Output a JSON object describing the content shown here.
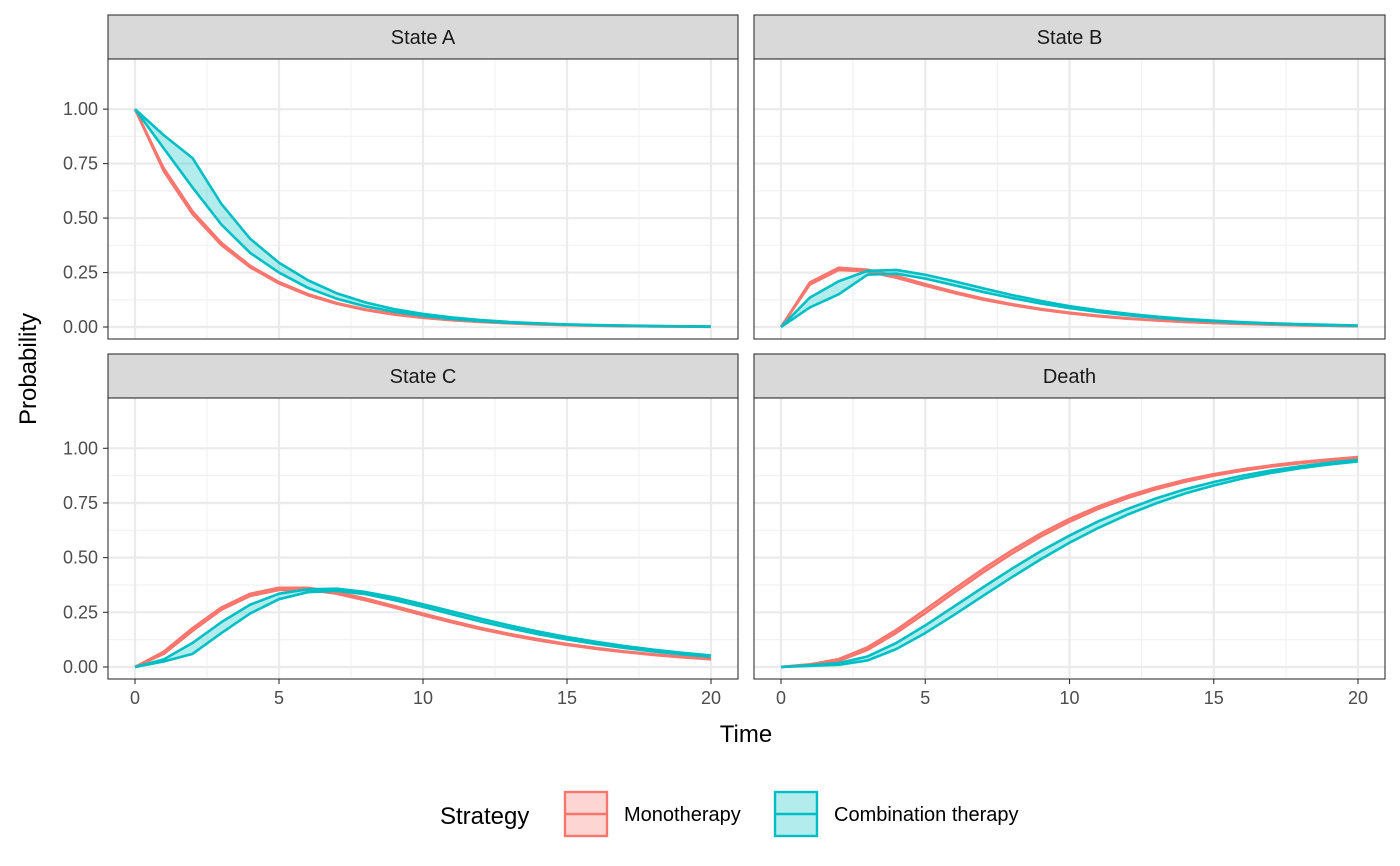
{
  "chart_data": {
    "type": "line",
    "layout": "facet-grid-2x2",
    "xlabel": "Time",
    "ylabel": "Probability",
    "xlim": [
      0,
      20
    ],
    "ylim": [
      0,
      1
    ],
    "x_ticks": [
      0,
      5,
      10,
      15,
      20
    ],
    "y_ticks": [
      0,
      0.25,
      0.5,
      0.75,
      1
    ],
    "y_tick_labels": [
      "0.00",
      "0.25",
      "0.50",
      "0.75",
      "1.00"
    ],
    "grid": true,
    "legend": {
      "title": "Strategy",
      "position": "bottom",
      "entries": [
        {
          "name": "Monotherapy",
          "color": "#F8766D",
          "fill": "#F8766D"
        },
        {
          "name": "Combination therapy",
          "color": "#00BFC4",
          "fill": "#00BFC4"
        }
      ]
    },
    "x": [
      0,
      1,
      2,
      3,
      4,
      5,
      6,
      7,
      8,
      9,
      10,
      11,
      12,
      13,
      14,
      15,
      16,
      17,
      18,
      19,
      20
    ],
    "panels": [
      {
        "title": "State A",
        "series": [
          {
            "name": "Monotherapy",
            "lower": [
              1.0,
              0.715,
              0.518,
              0.376,
              0.274,
              0.2,
              0.146,
              0.107,
              0.078,
              0.057,
              0.042,
              0.031,
              0.023,
              0.017,
              0.012,
              0.009,
              0.006,
              0.004,
              0.003,
              0.002,
              0.001
            ],
            "upper": [
              1.0,
              0.728,
              0.53,
              0.386,
              0.281,
              0.206,
              0.151,
              0.11,
              0.081,
              0.059,
              0.043,
              0.032,
              0.024,
              0.018,
              0.013,
              0.009,
              0.007,
              0.005,
              0.003,
              0.002,
              0.001
            ]
          },
          {
            "name": "Combination therapy",
            "lower": [
              1.0,
              0.82,
              0.64,
              0.47,
              0.34,
              0.25,
              0.18,
              0.13,
              0.095,
              0.07,
              0.051,
              0.037,
              0.027,
              0.02,
              0.015,
              0.011,
              0.008,
              0.006,
              0.004,
              0.003,
              0.002
            ],
            "upper": [
              1.0,
              0.88,
              0.775,
              0.565,
              0.405,
              0.295,
              0.215,
              0.155,
              0.113,
              0.082,
              0.06,
              0.044,
              0.032,
              0.023,
              0.017,
              0.012,
              0.009,
              0.007,
              0.005,
              0.003,
              0.002
            ]
          }
        ]
      },
      {
        "title": "State B",
        "series": [
          {
            "name": "Monotherapy",
            "lower": [
              0.0,
              0.195,
              0.262,
              0.255,
              0.226,
              0.19,
              0.156,
              0.126,
              0.101,
              0.08,
              0.063,
              0.049,
              0.038,
              0.03,
              0.023,
              0.018,
              0.014,
              0.011,
              0.008,
              0.006,
              0.004
            ],
            "upper": [
              0.0,
              0.205,
              0.272,
              0.263,
              0.234,
              0.197,
              0.162,
              0.131,
              0.105,
              0.083,
              0.066,
              0.052,
              0.04,
              0.031,
              0.024,
              0.019,
              0.015,
              0.011,
              0.008,
              0.006,
              0.004
            ]
          },
          {
            "name": "Combination therapy",
            "lower": [
              0.0,
              0.09,
              0.15,
              0.24,
              0.245,
              0.222,
              0.192,
              0.161,
              0.133,
              0.108,
              0.087,
              0.069,
              0.054,
              0.043,
              0.033,
              0.026,
              0.02,
              0.015,
              0.011,
              0.008,
              0.006
            ],
            "upper": [
              0.0,
              0.135,
              0.21,
              0.258,
              0.262,
              0.24,
              0.21,
              0.178,
              0.147,
              0.12,
              0.096,
              0.077,
              0.061,
              0.048,
              0.037,
              0.029,
              0.022,
              0.017,
              0.013,
              0.01,
              0.007
            ]
          }
        ]
      },
      {
        "title": "State C",
        "series": [
          {
            "name": "Monotherapy",
            "lower": [
              0.0,
              0.06,
              0.165,
              0.262,
              0.325,
              0.352,
              0.353,
              0.335,
              0.305,
              0.272,
              0.237,
              0.204,
              0.173,
              0.146,
              0.122,
              0.101,
              0.083,
              0.068,
              0.055,
              0.044,
              0.035
            ],
            "upper": [
              0.0,
              0.07,
              0.178,
              0.272,
              0.335,
              0.362,
              0.362,
              0.343,
              0.313,
              0.279,
              0.244,
              0.21,
              0.179,
              0.151,
              0.127,
              0.105,
              0.087,
              0.071,
              0.058,
              0.047,
              0.038
            ]
          },
          {
            "name": "Combination therapy",
            "lower": [
              0.0,
              0.025,
              0.06,
              0.155,
              0.245,
              0.31,
              0.342,
              0.348,
              0.333,
              0.306,
              0.275,
              0.241,
              0.208,
              0.178,
              0.15,
              0.126,
              0.105,
              0.087,
              0.071,
              0.058,
              0.047
            ],
            "upper": [
              0.0,
              0.035,
              0.11,
              0.205,
              0.285,
              0.335,
              0.355,
              0.358,
              0.343,
              0.318,
              0.287,
              0.254,
              0.221,
              0.19,
              0.162,
              0.137,
              0.115,
              0.096,
              0.079,
              0.065,
              0.053
            ]
          }
        ]
      },
      {
        "title": "Death",
        "series": [
          {
            "name": "Monotherapy",
            "lower": [
              0.0,
              0.008,
              0.028,
              0.078,
              0.156,
              0.246,
              0.34,
              0.432,
              0.518,
              0.596,
              0.664,
              0.723,
              0.772,
              0.813,
              0.847,
              0.875,
              0.898,
              0.917,
              0.932,
              0.945,
              0.955
            ],
            "upper": [
              0.0,
              0.012,
              0.036,
              0.09,
              0.17,
              0.262,
              0.356,
              0.448,
              0.533,
              0.61,
              0.677,
              0.734,
              0.782,
              0.822,
              0.855,
              0.882,
              0.904,
              0.922,
              0.937,
              0.949,
              0.96
            ]
          },
          {
            "name": "Combination therapy",
            "lower": [
              0.0,
              0.005,
              0.01,
              0.03,
              0.082,
              0.155,
              0.238,
              0.325,
              0.41,
              0.492,
              0.568,
              0.636,
              0.696,
              0.748,
              0.793,
              0.83,
              0.862,
              0.888,
              0.909,
              0.926,
              0.94
            ],
            "upper": [
              0.0,
              0.008,
              0.018,
              0.048,
              0.11,
              0.19,
              0.277,
              0.364,
              0.449,
              0.529,
              0.601,
              0.666,
              0.722,
              0.771,
              0.812,
              0.846,
              0.875,
              0.899,
              0.918,
              0.934,
              0.947
            ]
          }
        ]
      }
    ]
  }
}
